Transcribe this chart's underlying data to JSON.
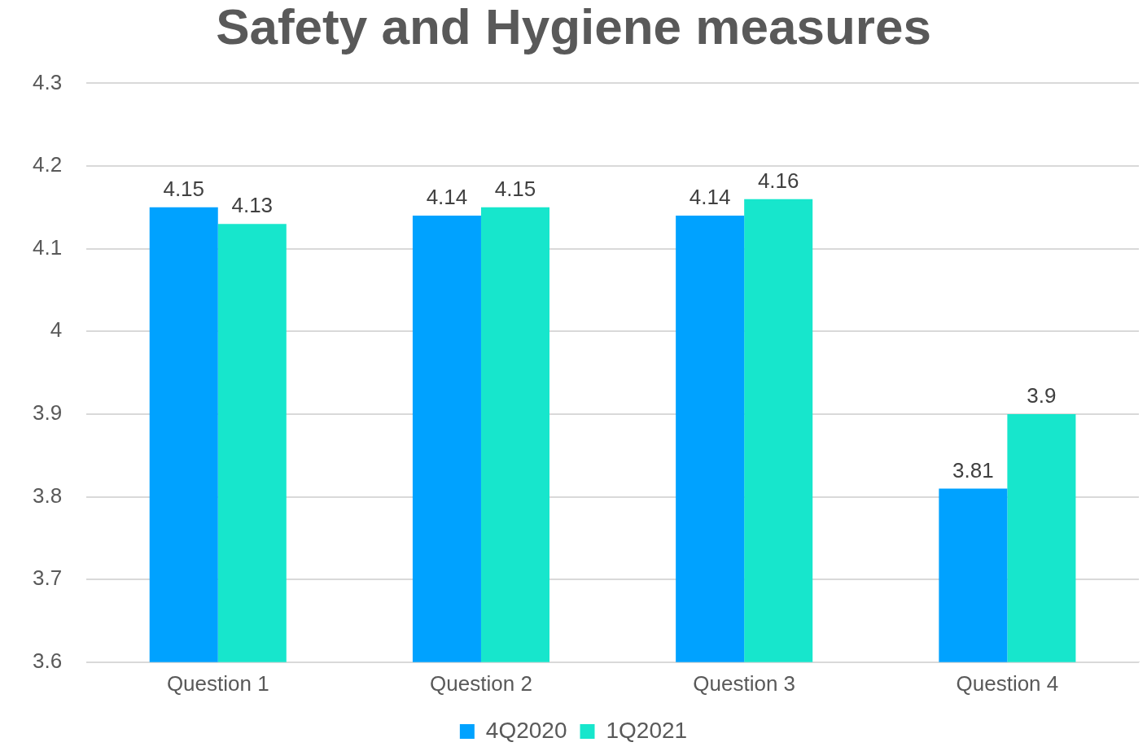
{
  "chart_data": {
    "type": "bar",
    "title": "Safety and Hygiene measures",
    "categories": [
      "Question 1",
      "Question 2",
      "Question 3",
      "Question 4"
    ],
    "series": [
      {
        "name": "4Q2020",
        "color": "#00a2ff",
        "values": [
          4.15,
          4.14,
          4.14,
          3.81
        ]
      },
      {
        "name": "1Q2021",
        "color": "#17e6cc",
        "values": [
          4.13,
          4.15,
          4.16,
          3.9
        ]
      }
    ],
    "ylim": [
      3.6,
      4.3
    ],
    "yticks": [
      3.6,
      3.7,
      3.8,
      3.9,
      4,
      4.1,
      4.2,
      4.3
    ],
    "grid": "y",
    "legend": "bottom",
    "data_labels": true
  }
}
